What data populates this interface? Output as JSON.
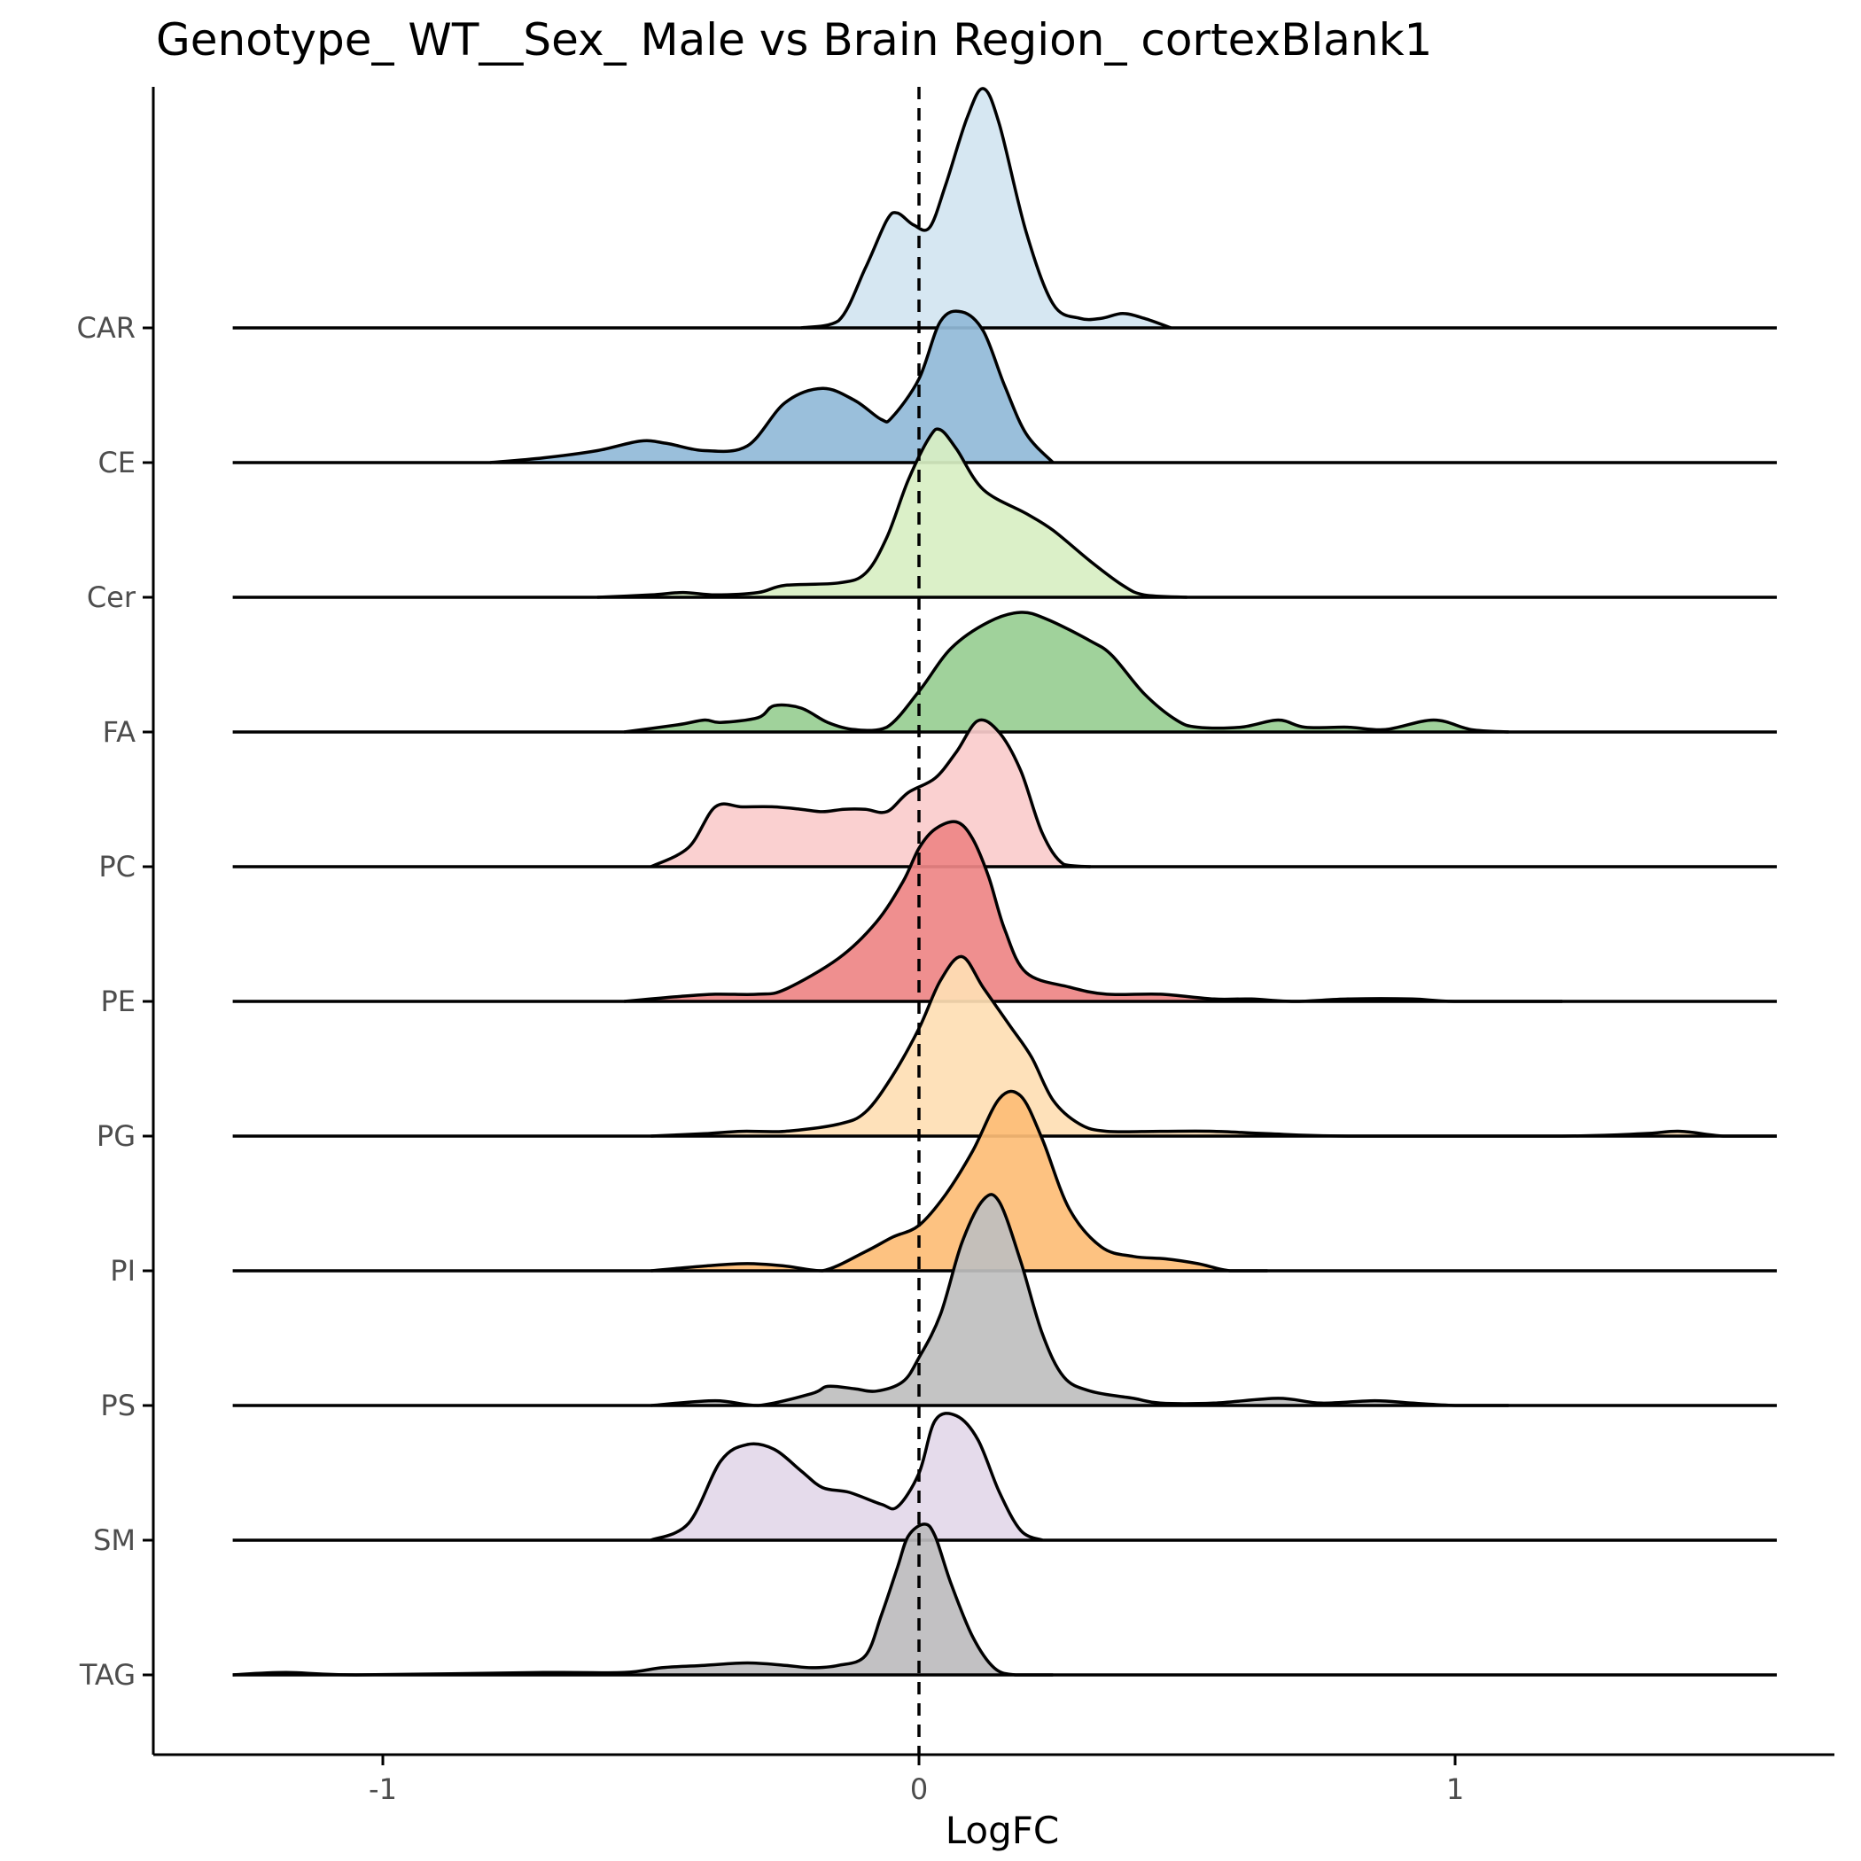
{
  "chart_data": {
    "type": "ridgeline",
    "title": "Genotype_ WT__Sex_ Male vs Brain Region_ cortexBlank1",
    "xlabel": "LogFC",
    "ylabel": "",
    "xlim": [
      -1.42,
      1.7
    ],
    "x_ticks": [
      -1,
      0,
      1
    ],
    "x_tick_labels": [
      "-1",
      "0",
      "1"
    ],
    "reference_line": {
      "x": 0,
      "style": "dashed"
    },
    "grid": false,
    "legend": "none",
    "series": [
      {
        "name": "CAR",
        "color": "#D3E5F1",
        "range": [
          -1.28,
          1.6
        ],
        "points": [
          [
            -0.22,
            0
          ],
          [
            -0.15,
            0.03
          ],
          [
            -0.1,
            0.25
          ],
          [
            -0.06,
            0.45
          ],
          [
            -0.04,
            0.48
          ],
          [
            -0.01,
            0.43
          ],
          [
            0.02,
            0.42
          ],
          [
            0.05,
            0.6
          ],
          [
            0.09,
            0.88
          ],
          [
            0.12,
            1.0
          ],
          [
            0.15,
            0.85
          ],
          [
            0.2,
            0.4
          ],
          [
            0.25,
            0.1
          ],
          [
            0.3,
            0.04
          ],
          [
            0.34,
            0.04
          ],
          [
            0.38,
            0.06
          ],
          [
            0.42,
            0.04
          ],
          [
            0.47,
            0
          ]
        ]
      },
      {
        "name": "CE",
        "color": "#91BAD8",
        "range": [
          -1.28,
          1.6
        ],
        "points": [
          [
            -0.8,
            0
          ],
          [
            -0.7,
            0.02
          ],
          [
            -0.6,
            0.05
          ],
          [
            -0.52,
            0.09
          ],
          [
            -0.47,
            0.08
          ],
          [
            -0.4,
            0.05
          ],
          [
            -0.32,
            0.07
          ],
          [
            -0.25,
            0.25
          ],
          [
            -0.18,
            0.31
          ],
          [
            -0.12,
            0.26
          ],
          [
            -0.07,
            0.18
          ],
          [
            -0.05,
            0.19
          ],
          [
            0.0,
            0.35
          ],
          [
            0.04,
            0.59
          ],
          [
            0.08,
            0.63
          ],
          [
            0.12,
            0.55
          ],
          [
            0.16,
            0.32
          ],
          [
            0.2,
            0.12
          ],
          [
            0.25,
            0
          ]
        ]
      },
      {
        "name": "Cer",
        "color": "#D8EFC3",
        "range": [
          -1.28,
          1.6
        ],
        "points": [
          [
            -0.6,
            0
          ],
          [
            -0.5,
            0.01
          ],
          [
            -0.44,
            0.02
          ],
          [
            -0.38,
            0.01
          ],
          [
            -0.3,
            0.02
          ],
          [
            -0.25,
            0.05
          ],
          [
            -0.15,
            0.06
          ],
          [
            -0.1,
            0.1
          ],
          [
            -0.06,
            0.25
          ],
          [
            -0.02,
            0.49
          ],
          [
            0.02,
            0.67
          ],
          [
            0.04,
            0.7
          ],
          [
            0.07,
            0.62
          ],
          [
            0.12,
            0.45
          ],
          [
            0.2,
            0.35
          ],
          [
            0.25,
            0.28
          ],
          [
            0.32,
            0.15
          ],
          [
            0.38,
            0.05
          ],
          [
            0.42,
            0.01
          ],
          [
            0.5,
            0
          ]
        ]
      },
      {
        "name": "FA",
        "color": "#98CE93",
        "range": [
          -1.28,
          1.6
        ],
        "points": [
          [
            -0.55,
            0
          ],
          [
            -0.45,
            0.03
          ],
          [
            -0.4,
            0.05
          ],
          [
            -0.37,
            0.04
          ],
          [
            -0.3,
            0.06
          ],
          [
            -0.27,
            0.11
          ],
          [
            -0.22,
            0.1
          ],
          [
            -0.17,
            0.04
          ],
          [
            -0.12,
            0.01
          ],
          [
            -0.06,
            0.02
          ],
          [
            0.0,
            0.17
          ],
          [
            0.06,
            0.35
          ],
          [
            0.13,
            0.46
          ],
          [
            0.19,
            0.5
          ],
          [
            0.24,
            0.47
          ],
          [
            0.32,
            0.38
          ],
          [
            0.36,
            0.32
          ],
          [
            0.42,
            0.16
          ],
          [
            0.48,
            0.05
          ],
          [
            0.52,
            0.02
          ],
          [
            0.6,
            0.02
          ],
          [
            0.67,
            0.05
          ],
          [
            0.72,
            0.02
          ],
          [
            0.8,
            0.02
          ],
          [
            0.87,
            0.01
          ],
          [
            0.96,
            0.05
          ],
          [
            1.03,
            0.01
          ],
          [
            1.1,
            0
          ]
        ]
      },
      {
        "name": "PC",
        "color": "#FACCCC",
        "range": [
          -1.28,
          1.6
        ],
        "points": [
          [
            -0.5,
            0
          ],
          [
            -0.43,
            0.08
          ],
          [
            -0.38,
            0.25
          ],
          [
            -0.33,
            0.25
          ],
          [
            -0.27,
            0.25
          ],
          [
            -0.22,
            0.24
          ],
          [
            -0.18,
            0.23
          ],
          [
            -0.14,
            0.24
          ],
          [
            -0.1,
            0.24
          ],
          [
            -0.06,
            0.23
          ],
          [
            -0.02,
            0.31
          ],
          [
            0.03,
            0.37
          ],
          [
            0.07,
            0.48
          ],
          [
            0.11,
            0.61
          ],
          [
            0.15,
            0.56
          ],
          [
            0.19,
            0.4
          ],
          [
            0.23,
            0.14
          ],
          [
            0.27,
            0.01
          ],
          [
            0.32,
            0
          ]
        ]
      },
      {
        "name": "PE",
        "color": "#EE8686",
        "range": [
          -1.28,
          1.6
        ],
        "points": [
          [
            -0.55,
            0
          ],
          [
            -0.45,
            0.02
          ],
          [
            -0.38,
            0.03
          ],
          [
            -0.3,
            0.03
          ],
          [
            -0.25,
            0.05
          ],
          [
            -0.15,
            0.18
          ],
          [
            -0.08,
            0.33
          ],
          [
            -0.03,
            0.5
          ],
          [
            0.0,
            0.64
          ],
          [
            0.03,
            0.72
          ],
          [
            0.07,
            0.75
          ],
          [
            0.1,
            0.68
          ],
          [
            0.13,
            0.52
          ],
          [
            0.16,
            0.3
          ],
          [
            0.2,
            0.12
          ],
          [
            0.28,
            0.06
          ],
          [
            0.35,
            0.03
          ],
          [
            0.45,
            0.03
          ],
          [
            0.55,
            0.01
          ],
          [
            0.62,
            0.01
          ],
          [
            0.7,
            0
          ],
          [
            0.8,
            0.01
          ],
          [
            0.92,
            0.01
          ],
          [
            1.0,
            0
          ],
          [
            1.2,
            0
          ]
        ]
      },
      {
        "name": "PG",
        "color": "#FEDEB4",
        "range": [
          -1.28,
          1.6
        ],
        "points": [
          [
            -0.5,
            0
          ],
          [
            -0.4,
            0.01
          ],
          [
            -0.33,
            0.02
          ],
          [
            -0.25,
            0.02
          ],
          [
            -0.15,
            0.05
          ],
          [
            -0.1,
            0.1
          ],
          [
            -0.05,
            0.25
          ],
          [
            0.0,
            0.45
          ],
          [
            0.04,
            0.65
          ],
          [
            0.08,
            0.75
          ],
          [
            0.12,
            0.62
          ],
          [
            0.17,
            0.46
          ],
          [
            0.21,
            0.33
          ],
          [
            0.25,
            0.15
          ],
          [
            0.3,
            0.05
          ],
          [
            0.35,
            0.02
          ],
          [
            0.45,
            0.02
          ],
          [
            0.55,
            0.02
          ],
          [
            0.65,
            0.01
          ],
          [
            0.8,
            0
          ],
          [
            1.2,
            0
          ],
          [
            1.35,
            0.01
          ],
          [
            1.42,
            0.02
          ],
          [
            1.5,
            0
          ],
          [
            1.6,
            0
          ]
        ]
      },
      {
        "name": "PI",
        "color": "#FDBD76",
        "range": [
          -1.28,
          1.6
        ],
        "points": [
          [
            -0.5,
            0
          ],
          [
            -0.4,
            0.02
          ],
          [
            -0.32,
            0.03
          ],
          [
            -0.25,
            0.02
          ],
          [
            -0.18,
            0
          ],
          [
            -0.1,
            0.08
          ],
          [
            -0.05,
            0.14
          ],
          [
            0.0,
            0.19
          ],
          [
            0.05,
            0.32
          ],
          [
            0.1,
            0.5
          ],
          [
            0.15,
            0.72
          ],
          [
            0.19,
            0.73
          ],
          [
            0.23,
            0.55
          ],
          [
            0.28,
            0.26
          ],
          [
            0.34,
            0.1
          ],
          [
            0.4,
            0.06
          ],
          [
            0.46,
            0.05
          ],
          [
            0.52,
            0.03
          ],
          [
            0.58,
            0
          ],
          [
            0.65,
            0
          ]
        ]
      },
      {
        "name": "PS",
        "color": "#BFBFBF",
        "range": [
          -1.28,
          1.6
        ],
        "points": [
          [
            -0.5,
            0
          ],
          [
            -0.38,
            0.02
          ],
          [
            -0.3,
            0.0
          ],
          [
            -0.2,
            0.05
          ],
          [
            -0.17,
            0.08
          ],
          [
            -0.12,
            0.07
          ],
          [
            -0.08,
            0.06
          ],
          [
            -0.03,
            0.1
          ],
          [
            0.0,
            0.2
          ],
          [
            0.04,
            0.38
          ],
          [
            0.08,
            0.68
          ],
          [
            0.12,
            0.86
          ],
          [
            0.15,
            0.85
          ],
          [
            0.19,
            0.6
          ],
          [
            0.23,
            0.3
          ],
          [
            0.27,
            0.12
          ],
          [
            0.32,
            0.06
          ],
          [
            0.4,
            0.03
          ],
          [
            0.45,
            0.01
          ],
          [
            0.55,
            0.01
          ],
          [
            0.67,
            0.03
          ],
          [
            0.75,
            0.01
          ],
          [
            0.85,
            0.02
          ],
          [
            0.92,
            0.01
          ],
          [
            1.0,
            0
          ],
          [
            1.1,
            0
          ]
        ]
      },
      {
        "name": "SM",
        "color": "#E3D8E9",
        "range": [
          -1.28,
          1.6
        ],
        "points": [
          [
            -0.5,
            0
          ],
          [
            -0.43,
            0.07
          ],
          [
            -0.37,
            0.33
          ],
          [
            -0.32,
            0.4
          ],
          [
            -0.27,
            0.38
          ],
          [
            -0.22,
            0.29
          ],
          [
            -0.18,
            0.22
          ],
          [
            -0.13,
            0.2
          ],
          [
            -0.07,
            0.15
          ],
          [
            -0.04,
            0.14
          ],
          [
            0.0,
            0.28
          ],
          [
            0.03,
            0.5
          ],
          [
            0.07,
            0.52
          ],
          [
            0.11,
            0.42
          ],
          [
            0.15,
            0.2
          ],
          [
            0.19,
            0.04
          ],
          [
            0.23,
            0
          ]
        ]
      },
      {
        "name": "TAG",
        "color": "#BDBCBE",
        "range": [
          -1.28,
          1.6
        ],
        "points": [
          [
            -1.28,
            0
          ],
          [
            -1.18,
            0.01
          ],
          [
            -1.05,
            0.0
          ],
          [
            -0.7,
            0.01
          ],
          [
            -0.55,
            0.01
          ],
          [
            -0.48,
            0.03
          ],
          [
            -0.4,
            0.04
          ],
          [
            -0.32,
            0.05
          ],
          [
            -0.25,
            0.04
          ],
          [
            -0.2,
            0.03
          ],
          [
            -0.15,
            0.04
          ],
          [
            -0.1,
            0.08
          ],
          [
            -0.07,
            0.25
          ],
          [
            -0.04,
            0.45
          ],
          [
            -0.02,
            0.58
          ],
          [
            0.01,
            0.63
          ],
          [
            0.03,
            0.58
          ],
          [
            0.06,
            0.38
          ],
          [
            0.1,
            0.16
          ],
          [
            0.14,
            0.03
          ],
          [
            0.18,
            0
          ],
          [
            0.25,
            0
          ]
        ]
      }
    ]
  }
}
